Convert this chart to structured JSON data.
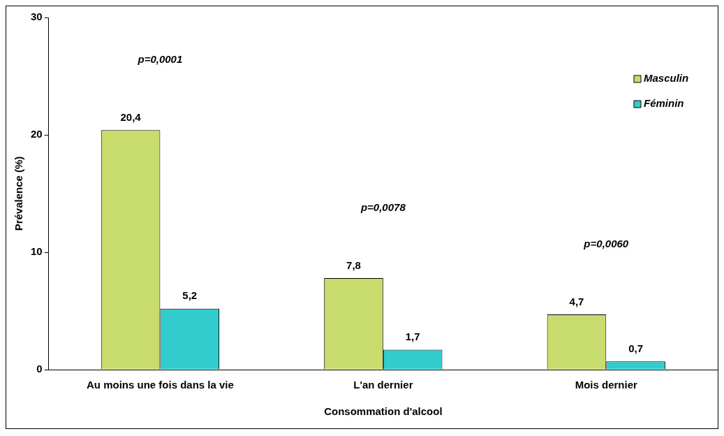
{
  "chart_data": {
    "type": "bar",
    "xlabel": "Consommation d'alcool",
    "ylabel": "Prévalence (%)",
    "categories": [
      "Au moins une fois dans la vie",
      "L'an dernier",
      "Mois dernier"
    ],
    "series": [
      {
        "name": "Masculin",
        "color": "#c8dc6e",
        "values": [
          20.4,
          7.8,
          4.7
        ],
        "value_labels": [
          "20,4",
          "7,8",
          "4,7"
        ]
      },
      {
        "name": "Féminin",
        "color": "#33cccc",
        "values": [
          5.2,
          1.7,
          0.7
        ],
        "value_labels": [
          "5,2",
          "1,7",
          "0,7"
        ]
      }
    ],
    "ylim": [
      0,
      30
    ],
    "yticks": [
      0,
      10,
      20,
      30
    ],
    "grid": false,
    "legend": "top right",
    "annotations": [
      "p=0,0001",
      "p=0,0078",
      "p=0,0060"
    ]
  }
}
